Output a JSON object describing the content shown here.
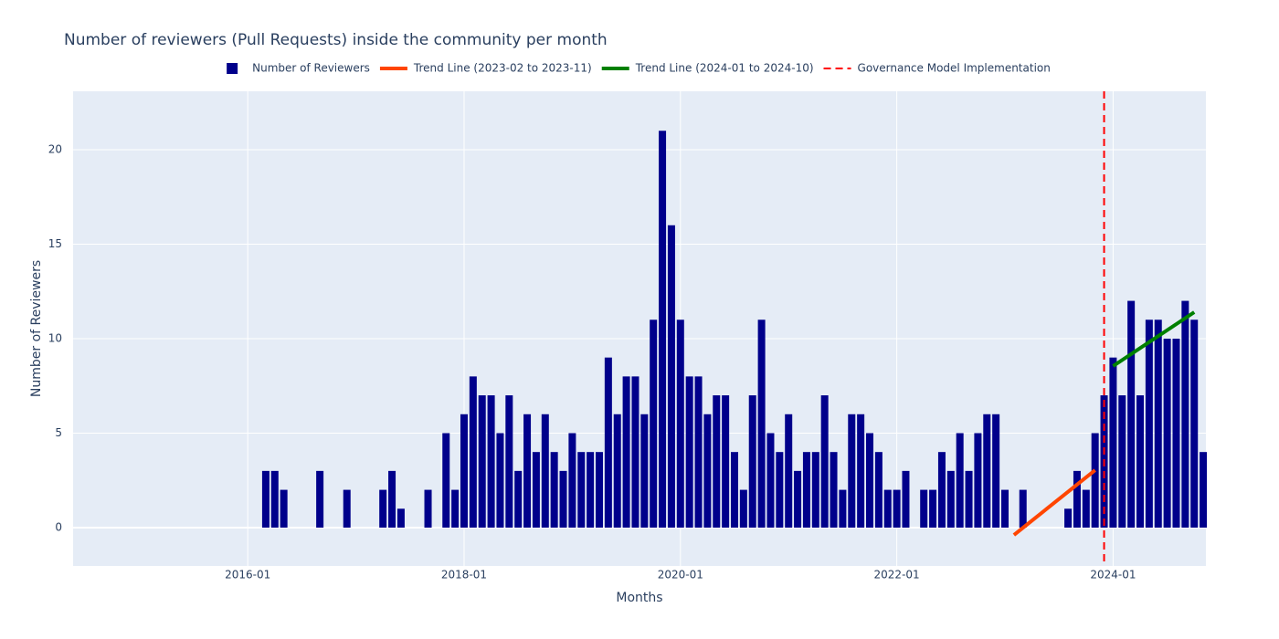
{
  "chart_data": {
    "type": "bar",
    "title": "Number of reviewers (Pull Requests) inside the community per month",
    "x_label": "Months",
    "y_label": "Number of Reviewers",
    "xlim": [
      "2014-05-20",
      "2024-11-10"
    ],
    "xticks": [
      "2016-01",
      "2018-01",
      "2020-01",
      "2022-01",
      "2024-01"
    ],
    "ylim": [
      -2.03,
      23.09
    ],
    "yticks": [
      0,
      5,
      10,
      15,
      20
    ],
    "grid": true,
    "series": [
      {
        "type": "bar",
        "name": "Number of Reviewers",
        "color": "#00008b",
        "x": [
          "2016-03",
          "2016-04",
          "2016-05",
          "2016-06",
          "2016-07",
          "2016-08",
          "2016-09",
          "2016-10",
          "2016-11",
          "2016-12",
          "2017-01",
          "2017-02",
          "2017-03",
          "2017-04",
          "2017-05",
          "2017-06",
          "2017-07",
          "2017-08",
          "2017-09",
          "2017-10",
          "2017-11",
          "2017-12",
          "2018-01",
          "2018-02",
          "2018-03",
          "2018-04",
          "2018-05",
          "2018-06",
          "2018-07",
          "2018-08",
          "2018-09",
          "2018-10",
          "2018-11",
          "2018-12",
          "2019-01",
          "2019-02",
          "2019-03",
          "2019-04",
          "2019-05",
          "2019-06",
          "2019-07",
          "2019-08",
          "2019-09",
          "2019-10",
          "2019-11",
          "2019-12",
          "2020-01",
          "2020-02",
          "2020-03",
          "2020-04",
          "2020-05",
          "2020-06",
          "2020-07",
          "2020-08",
          "2020-09",
          "2020-10",
          "2020-11",
          "2020-12",
          "2021-01",
          "2021-02",
          "2021-03",
          "2021-04",
          "2021-05",
          "2021-06",
          "2021-07",
          "2021-08",
          "2021-09",
          "2021-10",
          "2021-11",
          "2021-12",
          "2022-01",
          "2022-02",
          "2022-03",
          "2022-04",
          "2022-05",
          "2022-06",
          "2022-07",
          "2022-08",
          "2022-09",
          "2022-10",
          "2022-11",
          "2022-12",
          "2023-01",
          "2023-02",
          "2023-03",
          "2023-04",
          "2023-05",
          "2023-06",
          "2023-07",
          "2023-08",
          "2023-09",
          "2023-10",
          "2023-11",
          "2023-12",
          "2024-01",
          "2024-02",
          "2024-03",
          "2024-04",
          "2024-05",
          "2024-06",
          "2024-07",
          "2024-08",
          "2024-09",
          "2024-10",
          "2024-11"
        ],
        "values": [
          3,
          3,
          2,
          0,
          0,
          0,
          3,
          0,
          0,
          2,
          0,
          0,
          0,
          2,
          3,
          1,
          0,
          0,
          2,
          0,
          5,
          2,
          6,
          8,
          7,
          7,
          5,
          7,
          3,
          6,
          4,
          6,
          4,
          3,
          5,
          4,
          4,
          4,
          9,
          6,
          8,
          8,
          6,
          11,
          21,
          16,
          11,
          8,
          8,
          6,
          7,
          7,
          4,
          2,
          7,
          11,
          5,
          4,
          6,
          3,
          4,
          4,
          7,
          4,
          2,
          6,
          6,
          5,
          4,
          2,
          2,
          3,
          0,
          2,
          2,
          4,
          3,
          5,
          3,
          5,
          6,
          6,
          2,
          0,
          2,
          0,
          0,
          0,
          0,
          1,
          3,
          2,
          5,
          7,
          9,
          7,
          12,
          7,
          11,
          11,
          10,
          10,
          12,
          11,
          4
        ]
      },
      {
        "type": "line",
        "name": "Trend Line (2023-02 to 2023-11)",
        "color": "#ff4500",
        "x": [
          "2023-02",
          "2023-11"
        ],
        "values": [
          -0.39,
          3.04
        ]
      },
      {
        "type": "line",
        "name": "Trend Line (2024-01 to 2024-10)",
        "color": "#008000",
        "x": [
          "2024-01",
          "2024-10"
        ],
        "values": [
          8.55,
          11.4
        ]
      },
      {
        "type": "vline",
        "name": "Governance Model Implementation",
        "color": "#ff0000",
        "x": [
          "2023-12"
        ]
      }
    ]
  }
}
